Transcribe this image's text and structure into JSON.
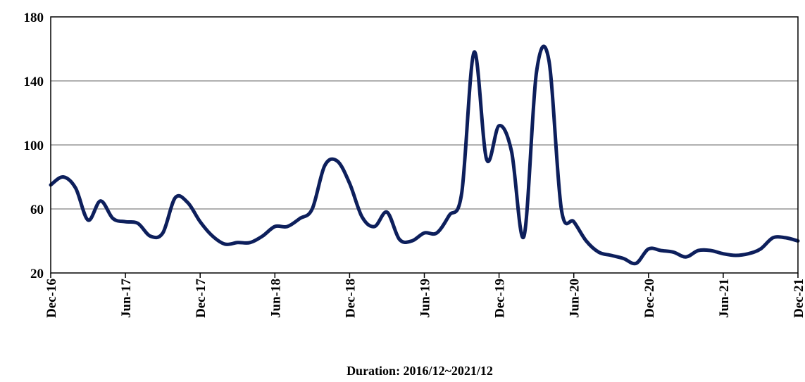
{
  "chart_data": {
    "type": "line",
    "title": "",
    "xlabel": "Duration: 2016/12~2021/12",
    "ylabel": "",
    "ylim": [
      20,
      180
    ],
    "yticks": [
      20,
      60,
      100,
      140,
      180
    ],
    "xticks": [
      "Dec-16",
      "Jun-17",
      "Dec-17",
      "Jun-18",
      "Dec-18",
      "Jun-19",
      "Dec-19",
      "Jun-20",
      "Dec-20",
      "Jun-21",
      "Dec-21"
    ],
    "grid": true,
    "line_color": "#0d1f5c",
    "series": [
      {
        "x": [
          "2016-12",
          "2017-01",
          "2017-02",
          "2017-03",
          "2017-04",
          "2017-05",
          "2017-06",
          "2017-07",
          "2017-08",
          "2017-09",
          "2017-10",
          "2017-11",
          "2017-12",
          "2018-01",
          "2018-02",
          "2018-03",
          "2018-04",
          "2018-05",
          "2018-06",
          "2018-07",
          "2018-08",
          "2018-09",
          "2018-10",
          "2018-11",
          "2018-12",
          "2019-01",
          "2019-02",
          "2019-03",
          "2019-04",
          "2019-05",
          "2019-06",
          "2019-07",
          "2019-08",
          "2019-09",
          "2019-10",
          "2019-11",
          "2019-12",
          "2020-01",
          "2020-02",
          "2020-03",
          "2020-04",
          "2020-05",
          "2020-06",
          "2020-07",
          "2020-08",
          "2020-09",
          "2020-10",
          "2020-11",
          "2020-12",
          "2021-01",
          "2021-02",
          "2021-03",
          "2021-04",
          "2021-05",
          "2021-06",
          "2021-07",
          "2021-08",
          "2021-09",
          "2021-10",
          "2021-11",
          "2021-12"
        ],
        "values": [
          75,
          80,
          73,
          53,
          65,
          54,
          52,
          51,
          43,
          45,
          67,
          64,
          52,
          43,
          38,
          39,
          39,
          43,
          49,
          49,
          54,
          60,
          87,
          90,
          76,
          55,
          49,
          58,
          41,
          40,
          45,
          45,
          56,
          70,
          158,
          91,
          112,
          96,
          43,
          145,
          153,
          60,
          52,
          40,
          33,
          31,
          29,
          26,
          35,
          34,
          33,
          30,
          34,
          34,
          32,
          31,
          32,
          35,
          42,
          42,
          40
        ]
      }
    ]
  }
}
